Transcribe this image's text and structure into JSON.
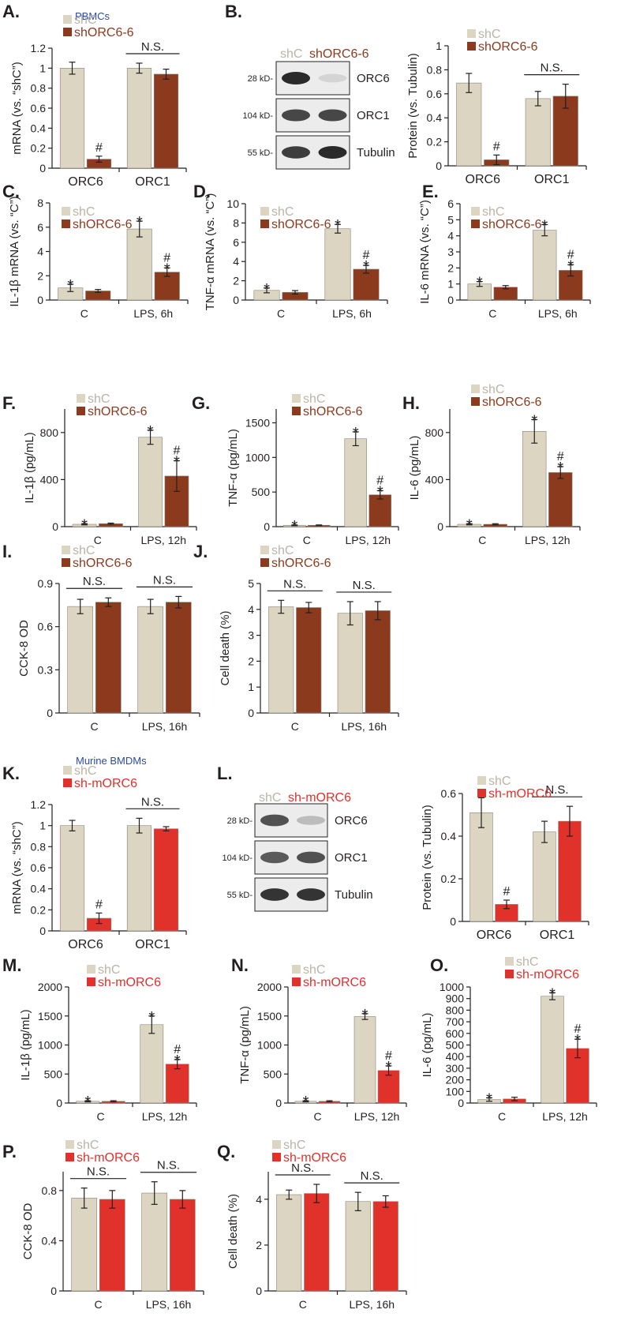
{
  "colors": {
    "shC": "#dcd5c1",
    "shORC6": "#8b3a1e",
    "shmORC6": "#e0312a",
    "axis": "#231f20",
    "subtitle": "#2b4aa8",
    "legend_shC_text": "#b9b4a6"
  },
  "sections": {
    "pbmc_title": "PBMCs",
    "bmdm_title": "Murine BMDMs"
  },
  "chart_data": [
    {
      "id": "A",
      "type": "bar",
      "panel_label": "A.",
      "ylabel": "mRNA (vs. “shC”)",
      "ylim": [
        0,
        1.2
      ],
      "yticks": [
        "0",
        "0.2",
        "0.4",
        "0.6",
        "0.8",
        "1",
        "1.2"
      ],
      "categories": [
        "ORC6",
        "ORC1"
      ],
      "series": [
        {
          "name": "shC",
          "values": [
            1.0,
            1.0
          ],
          "errors": [
            0.06,
            0.05
          ]
        },
        {
          "name": "shORC6-6",
          "values": [
            0.09,
            0.94
          ],
          "errors": [
            0.03,
            0.05
          ]
        }
      ],
      "annotations": [
        "#",
        ""
      ],
      "ns_label": "N.S."
    },
    {
      "id": "B",
      "type": "bar",
      "panel_label": "",
      "ylabel": "Protein (vs. Tubulin)",
      "ylim": [
        0,
        1
      ],
      "yticks": [
        "0",
        "0.2",
        "0.4",
        "0.6",
        "0.8",
        "1"
      ],
      "categories": [
        "ORC6",
        "ORC1"
      ],
      "series": [
        {
          "name": "shC",
          "values": [
            0.69,
            0.56
          ],
          "errors": [
            0.08,
            0.06
          ]
        },
        {
          "name": "shORC6-6",
          "values": [
            0.05,
            0.58
          ],
          "errors": [
            0.04,
            0.1
          ]
        }
      ],
      "annotations": [
        "#",
        ""
      ],
      "ns_label": "N.S."
    },
    {
      "id": "C",
      "type": "bar",
      "panel_label": "C.",
      "ylabel": "IL-1β mRNA (vs. “C”)",
      "ylim": [
        0,
        8
      ],
      "yticks": [
        "0",
        "2",
        "4",
        "6",
        "8"
      ],
      "categories": [
        "C",
        "LPS, 6h"
      ],
      "series": [
        {
          "name": "shC",
          "values": [
            1.0,
            5.85
          ],
          "errors": [
            0.3,
            0.65
          ]
        },
        {
          "name": "shORC6-6",
          "values": [
            0.75,
            2.3
          ],
          "errors": [
            0.12,
            0.35
          ]
        }
      ],
      "annotations": [
        "*",
        "#*"
      ]
    },
    {
      "id": "D",
      "type": "bar",
      "panel_label": "D.",
      "ylabel": "TNF-α mRNA (vs. “C”)",
      "ylim": [
        0,
        10
      ],
      "yticks": [
        "0",
        "2",
        "4",
        "6",
        "8",
        "10"
      ],
      "categories": [
        "C",
        "LPS, 6h"
      ],
      "series": [
        {
          "name": "shC",
          "values": [
            1.0,
            7.4
          ],
          "errors": [
            0.25,
            0.45
          ]
        },
        {
          "name": "shORC6-6",
          "values": [
            0.8,
            3.2
          ],
          "errors": [
            0.18,
            0.4
          ]
        }
      ],
      "annotations": [
        "*",
        "#*"
      ]
    },
    {
      "id": "E",
      "type": "bar",
      "panel_label": "E.",
      "ylabel": "IL-6 mRNA (vs. “C”)",
      "ylim": [
        0,
        6
      ],
      "yticks": [
        "0",
        "1",
        "2",
        "3",
        "4",
        "5",
        "6"
      ],
      "categories": [
        "C",
        "LPS, 6h"
      ],
      "series": [
        {
          "name": "shC",
          "values": [
            1.0,
            4.35
          ],
          "errors": [
            0.15,
            0.35
          ]
        },
        {
          "name": "shORC6-6",
          "values": [
            0.8,
            1.85
          ],
          "errors": [
            0.1,
            0.35
          ]
        }
      ],
      "annotations": [
        "*",
        "#*"
      ]
    },
    {
      "id": "F",
      "type": "bar",
      "panel_label": "F.",
      "ylabel": "IL-1β (pg/mL)",
      "ylim": [
        0,
        1000
      ],
      "yticks": [
        "0",
        "400",
        "800"
      ],
      "categories": [
        "C",
        "LPS, 12h"
      ],
      "series": [
        {
          "name": "shC",
          "values": [
            20,
            760
          ],
          "errors": [
            5,
            60
          ]
        },
        {
          "name": "shORC6-6",
          "values": [
            25,
            430
          ],
          "errors": [
            5,
            130
          ]
        }
      ],
      "annotations": [
        "*",
        "#*"
      ]
    },
    {
      "id": "G",
      "type": "bar",
      "panel_label": "G.",
      "ylabel": "TNF-α  (pg/mL)",
      "ylim": [
        0,
        1700
      ],
      "yticks": [
        "0",
        "500",
        "1000",
        "1500"
      ],
      "categories": [
        "C",
        "LPS, 12h"
      ],
      "series": [
        {
          "name": "shC",
          "values": [
            20,
            1270
          ],
          "errors": [
            5,
            100
          ]
        },
        {
          "name": "shORC6-6",
          "values": [
            20,
            460
          ],
          "errors": [
            5,
            60
          ]
        }
      ],
      "annotations": [
        "*",
        "#*"
      ]
    },
    {
      "id": "H",
      "type": "bar",
      "panel_label": "H.",
      "ylabel": "IL-6 (pg/mL)",
      "ylim": [
        0,
        1000
      ],
      "yticks": [
        "0",
        "400",
        "800"
      ],
      "categories": [
        "C",
        "LPS, 12h"
      ],
      "series": [
        {
          "name": "shC",
          "values": [
            20,
            810
          ],
          "errors": [
            5,
            100
          ]
        },
        {
          "name": "shORC6-6",
          "values": [
            20,
            460
          ],
          "errors": [
            5,
            50
          ]
        }
      ],
      "annotations": [
        "*",
        "#*"
      ]
    },
    {
      "id": "I",
      "type": "bar",
      "panel_label": "I.",
      "ylabel": "CCK-8 OD",
      "ylim": [
        0,
        0.9
      ],
      "yticks": [
        "0",
        "0.3",
        "0.6",
        "0.9"
      ],
      "categories": [
        "C",
        "LPS, 16h"
      ],
      "series": [
        {
          "name": "shC",
          "values": [
            0.74,
            0.74
          ],
          "errors": [
            0.05,
            0.05
          ]
        },
        {
          "name": "shORC6-6",
          "values": [
            0.77,
            0.77
          ],
          "errors": [
            0.03,
            0.04
          ]
        }
      ],
      "ns_label": "N.S."
    },
    {
      "id": "J",
      "type": "bar",
      "panel_label": "J.",
      "ylabel": "Cell death (%)",
      "ylim": [
        0,
        5
      ],
      "yticks": [
        "0",
        "1",
        "2",
        "3",
        "4",
        "5"
      ],
      "categories": [
        "C",
        "LPS, 16h"
      ],
      "series": [
        {
          "name": "shC",
          "values": [
            4.1,
            3.85
          ],
          "errors": [
            0.25,
            0.45
          ]
        },
        {
          "name": "shORC6-6",
          "values": [
            4.07,
            3.95
          ],
          "errors": [
            0.2,
            0.35
          ]
        }
      ],
      "ns_label": "N.S."
    },
    {
      "id": "K",
      "type": "bar",
      "panel_label": "K.",
      "ylabel": "mRNA (vs. “shC”)",
      "ylim": [
        0,
        1.2
      ],
      "yticks": [
        "0",
        "0.2",
        "0.4",
        "0.6",
        "0.8",
        "1",
        "1.2"
      ],
      "categories": [
        "ORC6",
        "ORC1"
      ],
      "series": [
        {
          "name": "shC",
          "values": [
            1.0,
            1.0
          ],
          "errors": [
            0.05,
            0.07
          ]
        },
        {
          "name": "sh-mORC6",
          "values": [
            0.12,
            0.97
          ],
          "errors": [
            0.05,
            0.02
          ]
        }
      ],
      "annotations": [
        "#",
        ""
      ],
      "ns_label": "N.S."
    },
    {
      "id": "L",
      "type": "bar",
      "panel_label": "",
      "ylabel": "Protein (vs. Tubulin)",
      "ylim": [
        0,
        0.6
      ],
      "yticks": [
        "0",
        "0.2",
        "0.4",
        "0.6"
      ],
      "categories": [
        "ORC6",
        "ORC1"
      ],
      "series": [
        {
          "name": "shC",
          "values": [
            0.51,
            0.42
          ],
          "errors": [
            0.07,
            0.05
          ]
        },
        {
          "name": "sh-mORC6",
          "values": [
            0.08,
            0.47
          ],
          "errors": [
            0.02,
            0.07
          ]
        }
      ],
      "annotations": [
        "#",
        ""
      ],
      "ns_label": "N.S."
    },
    {
      "id": "M",
      "type": "bar",
      "panel_label": "M.",
      "ylabel": "IL-1β (pg/mL)",
      "ylim": [
        0,
        2000
      ],
      "yticks": [
        "0",
        "500",
        "1000",
        "1500",
        "2000"
      ],
      "categories": [
        "C",
        "LPS, 12h"
      ],
      "series": [
        {
          "name": "shC",
          "values": [
            30,
            1350
          ],
          "errors": [
            10,
            150
          ]
        },
        {
          "name": "sh-mORC6",
          "values": [
            30,
            670
          ],
          "errors": [
            10,
            80
          ]
        }
      ],
      "annotations": [
        "*",
        "#*"
      ]
    },
    {
      "id": "N",
      "type": "bar",
      "panel_label": "N.",
      "ylabel": "TNF-α (pg/mL)",
      "ylim": [
        0,
        2000
      ],
      "yticks": [
        "0",
        "500",
        "1000",
        "1500",
        "2000"
      ],
      "categories": [
        "C",
        "LPS, 12h"
      ],
      "series": [
        {
          "name": "shC",
          "values": [
            30,
            1490
          ],
          "errors": [
            10,
            50
          ]
        },
        {
          "name": "sh-mORC6",
          "values": [
            30,
            560
          ],
          "errors": [
            10,
            80
          ]
        }
      ],
      "annotations": [
        "*",
        "#*"
      ]
    },
    {
      "id": "O",
      "type": "bar",
      "panel_label": "O.",
      "ylabel": "IL-6 (pg/mL)",
      "ylim": [
        0,
        1000
      ],
      "yticks": [
        "0",
        "100",
        "200",
        "300",
        "400",
        "500",
        "600",
        "700",
        "800",
        "900",
        "1000"
      ],
      "categories": [
        "C",
        "LPS, 12h"
      ],
      "series": [
        {
          "name": "shC",
          "values": [
            30,
            920
          ],
          "errors": [
            15,
            30
          ]
        },
        {
          "name": "sh-mORC6",
          "values": [
            35,
            470
          ],
          "errors": [
            15,
            80
          ]
        }
      ],
      "annotations": [
        "*",
        "#*"
      ]
    },
    {
      "id": "P",
      "type": "bar",
      "panel_label": "P.",
      "ylabel": "CCK-8 OD",
      "ylim": [
        0,
        0.95
      ],
      "yticks": [
        "0",
        "0.4",
        "0.8"
      ],
      "categories": [
        "C",
        "LPS, 16h"
      ],
      "series": [
        {
          "name": "shC",
          "values": [
            0.74,
            0.78
          ],
          "errors": [
            0.08,
            0.09
          ]
        },
        {
          "name": "sh-mORC6",
          "values": [
            0.73,
            0.73
          ],
          "errors": [
            0.07,
            0.07
          ]
        }
      ],
      "ns_label": "N.S."
    },
    {
      "id": "Q",
      "type": "bar",
      "panel_label": "Q.",
      "ylabel": "Cell death (%)",
      "ylim": [
        0,
        5.2
      ],
      "yticks": [
        "0",
        "2",
        "4"
      ],
      "categories": [
        "C",
        "LPS, 16h"
      ],
      "series": [
        {
          "name": "shC",
          "values": [
            4.2,
            3.9
          ],
          "errors": [
            0.2,
            0.4
          ]
        },
        {
          "name": "sh-mORC6",
          "values": [
            4.25,
            3.9
          ],
          "errors": [
            0.4,
            0.25
          ]
        }
      ],
      "ns_label": "N.S."
    }
  ],
  "blots": [
    {
      "id": "B",
      "panel_label": "B.",
      "lanes": [
        "shC",
        "shORC6-6"
      ],
      "rows": [
        {
          "kd": "28 kD-",
          "protein": "ORC6"
        },
        {
          "kd": "104 kD-",
          "protein": "ORC1"
        },
        {
          "kd": "55 kD-",
          "protein": "Tubulin"
        }
      ]
    },
    {
      "id": "L",
      "panel_label": "L.",
      "lanes": [
        "shC",
        "sh-mORC6"
      ],
      "rows": [
        {
          "kd": "28 kD-",
          "protein": "ORC6"
        },
        {
          "kd": "104 kD-",
          "protein": "ORC1"
        },
        {
          "kd": "55 kD-",
          "protein": "Tubulin"
        }
      ]
    }
  ]
}
